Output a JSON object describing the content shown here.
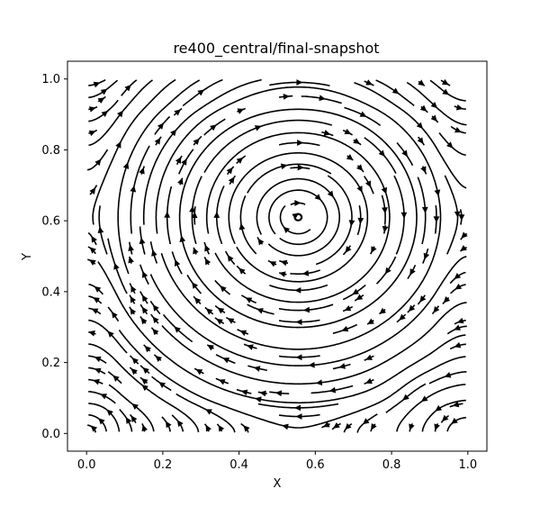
{
  "chart_data": {
    "type": "streamplot",
    "title": "re400_central/final-snapshot",
    "xlabel": "X",
    "ylabel": "Y",
    "xlim": [
      -0.05,
      1.05
    ],
    "ylim": [
      -0.05,
      1.05
    ],
    "x_ticks": [
      0.0,
      0.2,
      0.4,
      0.6,
      0.8,
      1.0
    ],
    "y_ticks": [
      0.0,
      0.2,
      0.4,
      0.6,
      0.8,
      1.0
    ],
    "x_tick_labels": [
      "0.0",
      "0.2",
      "0.4",
      "0.6",
      "0.8",
      "1.0"
    ],
    "y_tick_labels": [
      "0.0",
      "0.2",
      "0.4",
      "0.6",
      "0.8",
      "1.0"
    ],
    "grid": false,
    "line_color": "#000000",
    "primary_vortex": {
      "center": [
        0.555,
        0.61
      ],
      "rotation": "clockwise",
      "lid_velocity": "+x along y=1.0"
    },
    "secondary_vortex": {
      "center": [
        0.88,
        0.125
      ],
      "rotation": "counterclockwise"
    },
    "corner_eddy": {
      "center": [
        0.03,
        0.07
      ],
      "rotation": "counterclockwise"
    }
  }
}
